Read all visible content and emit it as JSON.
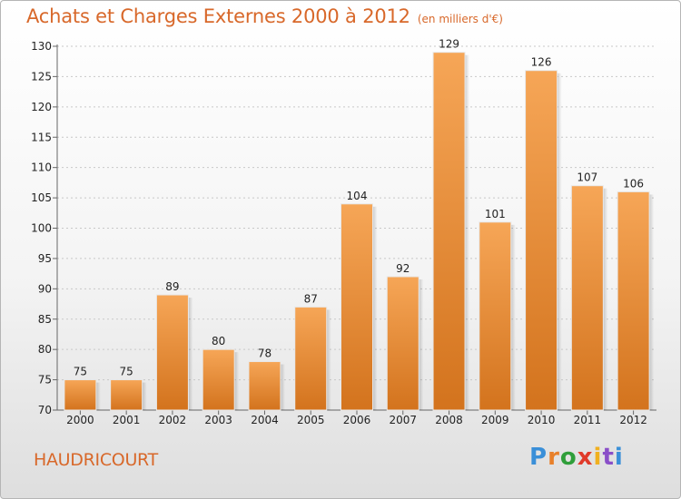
{
  "title": "Achats et Charges Externes 2000 à 2012",
  "unit": "(en milliers d'€)",
  "place": "HAUDRICOURT",
  "brand": "Proxiti",
  "brand_colors": [
    "#3a8fd8",
    "#e8802a",
    "#2f9e3a",
    "#e03a2a",
    "#f0b020",
    "#8a4fc8",
    "#3a8fd8"
  ],
  "colors": {
    "accent": "#d8682a",
    "bar_top": "#f6a657",
    "bar_bottom": "#d3731d"
  },
  "chart_data": {
    "type": "bar",
    "title": "Achats et Charges Externes 2000 à 2012",
    "subtitle": "(en milliers d'€)",
    "xlabel": "",
    "ylabel": "",
    "categories": [
      "2000",
      "2001",
      "2002",
      "2003",
      "2004",
      "2005",
      "2006",
      "2007",
      "2008",
      "2009",
      "2010",
      "2011",
      "2012"
    ],
    "values": [
      75,
      75,
      89,
      80,
      78,
      87,
      104,
      92,
      129,
      101,
      126,
      107,
      106
    ],
    "ylim": [
      70,
      130
    ],
    "yticks": [
      70,
      75,
      80,
      85,
      90,
      95,
      100,
      105,
      110,
      115,
      120,
      125,
      130
    ],
    "grid": true,
    "legend": "none"
  }
}
